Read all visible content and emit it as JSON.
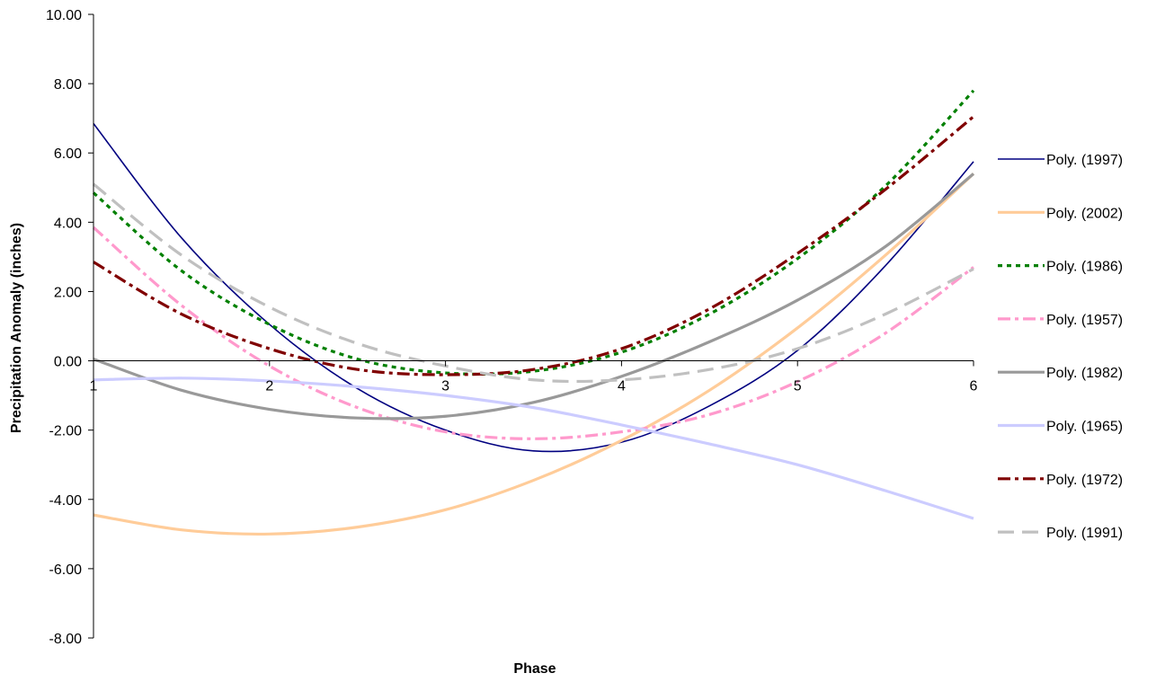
{
  "chart_data": {
    "type": "line",
    "title": "",
    "xlabel": "Phase",
    "ylabel": "Precipitation Anomaly (inches)",
    "xlim": [
      1,
      6
    ],
    "ylim": [
      -8,
      10
    ],
    "x_ticks": [
      "1",
      "2",
      "3",
      "4",
      "5",
      "6"
    ],
    "y_ticks": [
      "-8.00",
      "-6.00",
      "-4.00",
      "-2.00",
      "0.00",
      "2.00",
      "4.00",
      "6.00",
      "8.00",
      "10.00"
    ],
    "grid": false,
    "legend_position": "right",
    "series": [
      {
        "name": "Poly. (1997)",
        "color": "#000080",
        "style": "solid-thin",
        "x": [
          1,
          1.5,
          2,
          2.5,
          3,
          3.5,
          4,
          4.5,
          5,
          5.5,
          6
        ],
        "y": [
          6.85,
          3.55,
          1.05,
          -0.8,
          -2.0,
          -2.6,
          -2.35,
          -1.3,
          0.3,
          2.75,
          5.75
        ]
      },
      {
        "name": "Poly. (2002)",
        "color": "#FFCC99",
        "style": "solid-thick",
        "x": [
          1,
          1.5,
          2,
          2.5,
          3,
          3.5,
          4,
          4.5,
          5,
          5.5,
          6
        ],
        "y": [
          -4.45,
          -4.88,
          -5.0,
          -4.8,
          -4.3,
          -3.45,
          -2.3,
          -0.85,
          0.95,
          3.05,
          5.4
        ]
      },
      {
        "name": "Poly. (1986)",
        "color": "#008000",
        "style": "dotted",
        "x": [
          1,
          1.5,
          2,
          2.5,
          3,
          3.5,
          4,
          4.5,
          5,
          5.5,
          6
        ],
        "y": [
          4.85,
          2.6,
          1.05,
          0.05,
          -0.35,
          -0.3,
          0.25,
          1.35,
          2.95,
          5.05,
          7.8
        ]
      },
      {
        "name": "Poly. (1957)",
        "color": "#FF99CC",
        "style": "dash-dot",
        "x": [
          1,
          1.5,
          2,
          2.5,
          3,
          3.5,
          4,
          4.5,
          5,
          5.5,
          6
        ],
        "y": [
          3.85,
          1.6,
          -0.15,
          -1.35,
          -2.05,
          -2.25,
          -2.05,
          -1.55,
          -0.6,
          0.8,
          2.7
        ]
      },
      {
        "name": "Poly. (1982)",
        "color": "#999999",
        "style": "solid-thick",
        "x": [
          1,
          1.5,
          2,
          2.5,
          3,
          3.5,
          4,
          4.5,
          5,
          5.5,
          6
        ],
        "y": [
          0.05,
          -0.85,
          -1.4,
          -1.65,
          -1.6,
          -1.2,
          -0.45,
          0.55,
          1.75,
          3.3,
          5.4
        ]
      },
      {
        "name": "Poly. (1965)",
        "color": "#CCCCFF",
        "style": "solid-thick",
        "x": [
          1,
          1.5,
          2,
          2.5,
          3,
          3.5,
          4,
          4.5,
          5,
          5.5,
          6
        ],
        "y": [
          -0.55,
          -0.5,
          -0.58,
          -0.75,
          -1.0,
          -1.35,
          -1.85,
          -2.4,
          -3.0,
          -3.75,
          -4.55
        ]
      },
      {
        "name": "Poly. (1972)",
        "color": "#800000",
        "style": "dash-dot",
        "x": [
          1,
          1.5,
          2,
          2.5,
          3,
          3.5,
          4,
          4.5,
          5,
          5.5,
          6
        ],
        "y": [
          2.85,
          1.35,
          0.35,
          -0.25,
          -0.4,
          -0.25,
          0.35,
          1.5,
          3.1,
          4.95,
          7.05
        ]
      },
      {
        "name": "Poly. (1991)",
        "color": "#C0C0C0",
        "style": "dashed",
        "x": [
          1,
          1.5,
          2,
          2.5,
          3,
          3.5,
          4,
          4.5,
          5,
          5.5,
          6
        ],
        "y": [
          5.1,
          3.05,
          1.55,
          0.5,
          -0.15,
          -0.55,
          -0.55,
          -0.25,
          0.35,
          1.35,
          2.65
        ]
      }
    ]
  }
}
